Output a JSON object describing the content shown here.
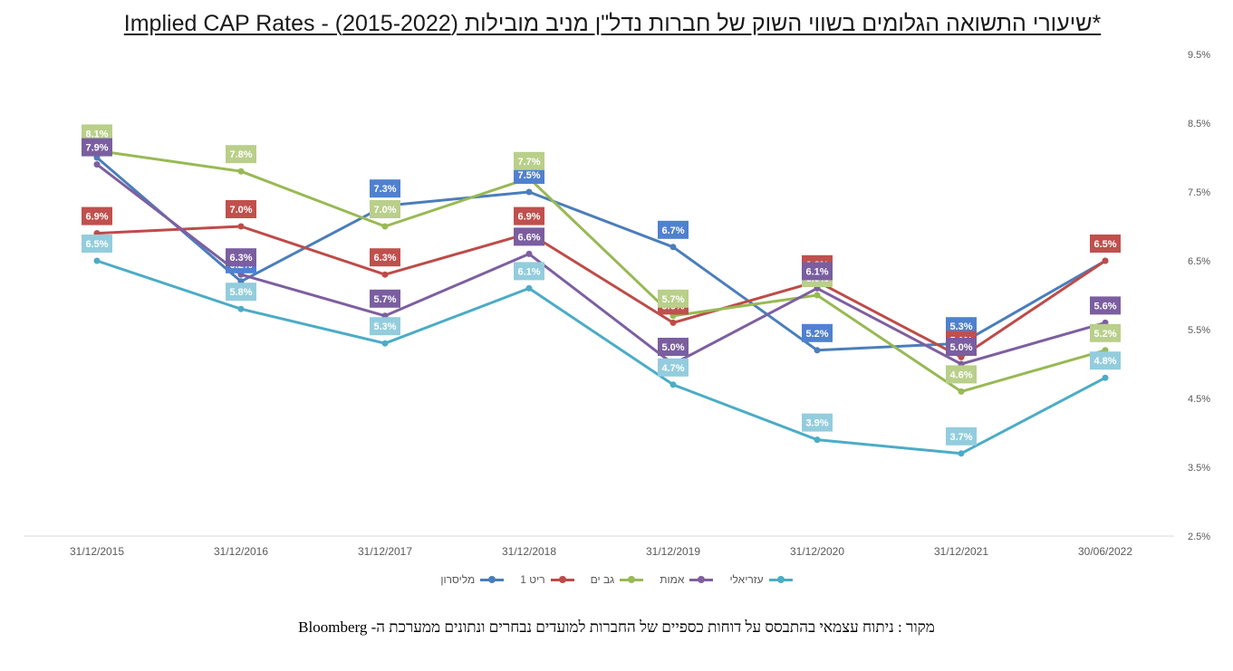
{
  "title": "Implied CAP Rates - שיעורי התשואה הגלומים בשווי השוק של חברות נדל\"ן מניב מובילות (2015-2022)*",
  "source": "מקור : ניתוח עצמאי בהתבסס על דוחות כספיים של החברות למועדים נבחרים ונתונים ממערכת ה- Bloomberg",
  "chart_data": {
    "type": "line",
    "title": "Implied CAP Rates - שיעורי התשואה הגלומים בשווי השוק של חברות נדל\"ן מניב מובילות (2015-2022)*",
    "categories": [
      "31/12/2015",
      "31/12/2016",
      "31/12/2017",
      "31/12/2018",
      "31/12/2019",
      "31/12/2020",
      "31/12/2021",
      "30/06/2022"
    ],
    "ylim": [
      2.5,
      9.5
    ],
    "yticks": [
      9.5,
      8.5,
      7.5,
      6.5,
      5.5,
      4.5,
      3.5,
      2.5
    ],
    "yaxis_position": "right",
    "value_suffix": "%",
    "grid": false,
    "legend_position": "bottom",
    "series": [
      {
        "name": "מליסרון",
        "color": "#4a7ebb",
        "label_color": "#4f81d0",
        "values": [
          8.0,
          6.2,
          7.3,
          7.5,
          6.7,
          5.2,
          5.3,
          6.5
        ]
      },
      {
        "name": "ריט 1",
        "color": "#be4b48",
        "label_color": "#c0504d",
        "values": [
          6.9,
          7.0,
          6.3,
          6.9,
          5.6,
          6.2,
          5.1,
          6.5
        ]
      },
      {
        "name": "גב ים",
        "color": "#98b954",
        "label_color": "#b9cf8a",
        "values": [
          8.1,
          7.8,
          7.0,
          7.7,
          5.7,
          6.0,
          4.6,
          5.2
        ]
      },
      {
        "name": "אמות",
        "color": "#7d5fa0",
        "label_color": "#7a5ea0",
        "values": [
          7.9,
          6.3,
          5.7,
          6.6,
          5.0,
          6.1,
          5.0,
          5.6
        ]
      },
      {
        "name": "עזריאלי",
        "color": "#4bacc6",
        "label_color": "#93cddd",
        "values": [
          6.5,
          5.8,
          5.3,
          6.1,
          4.7,
          3.9,
          3.7,
          4.8
        ]
      }
    ]
  }
}
